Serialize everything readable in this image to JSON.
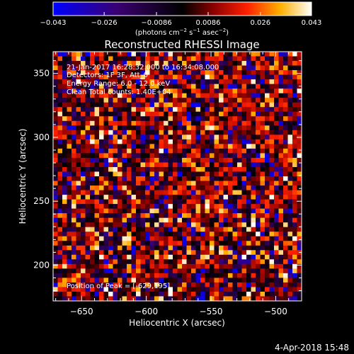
{
  "chart_data": {
    "type": "heatmap",
    "title": "Reconstructed RHESSI Image",
    "xlabel": "Heliocentric X (arcsec)",
    "ylabel": "Heliocentric Y (arcsec)",
    "xlim": [
      -672,
      -480
    ],
    "ylim": [
      172,
      367
    ],
    "x_ticks": [
      -650,
      -600,
      -550,
      -500
    ],
    "y_ticks": [
      200,
      250,
      300,
      350
    ],
    "colorbar": {
      "ticks": [
        -0.043,
        -0.026,
        -0.0086,
        0.0086,
        0.026,
        0.043
      ],
      "tick_labels": [
        "−0.043",
        "−0.026",
        "−0.0086",
        "0.0086",
        "0.026",
        "0.043"
      ],
      "min": -0.043,
      "max": 0.043,
      "units_base": "(photons cm",
      "units_exp1": "−2",
      "units_mid": " s",
      "units_exp2": "−1",
      "units_mid2": " asec",
      "units_exp3": "−2",
      "units_end": ")"
    },
    "annotations": [
      "21-Jan-2017 16:28:32.000 to 16:34:08.000",
      "Detectors: 1F 3F, Att_0",
      "Energy Range: 6.0 - 12.0 keV",
      "Clean    Total counts: 1.40E+04"
    ],
    "peak_label": "Position of Peak = [-629,195]",
    "peak_position": [
      -629,
      195
    ],
    "grid": false,
    "pixel_grid": [
      54,
      54
    ]
  },
  "footer_date": "4-Apr-2018 15:48"
}
